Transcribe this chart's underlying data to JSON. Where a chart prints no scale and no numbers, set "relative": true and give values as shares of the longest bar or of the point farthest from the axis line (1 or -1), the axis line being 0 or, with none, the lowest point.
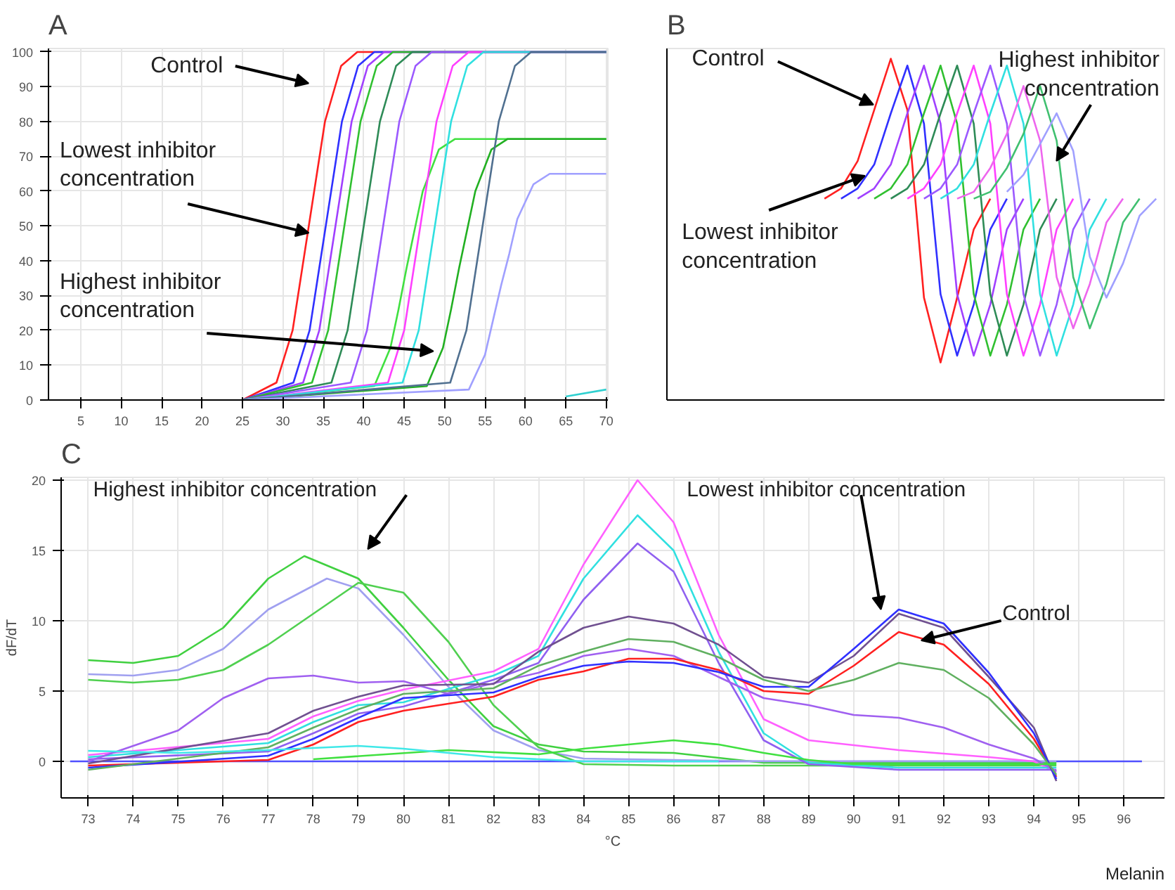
{
  "chart_data": [
    {
      "type": "line",
      "title": "A",
      "xlim": [
        1,
        70.2
      ],
      "ylim": [
        0,
        101
      ],
      "xticks": [
        5,
        10,
        15,
        20,
        25,
        30,
        35,
        40,
        45,
        50,
        55,
        60,
        65,
        70
      ],
      "yticks": [
        0,
        10,
        20,
        30,
        40,
        50,
        60,
        70,
        80,
        90,
        100
      ],
      "grid": true,
      "series": [
        {
          "color": "#ff2020",
          "x": [
            25,
            29.2,
            31.2,
            32.2,
            33.2,
            34.2,
            35.2,
            37.2,
            39.2,
            70
          ],
          "values": [
            0,
            5,
            20,
            35,
            50,
            65,
            80,
            96,
            100,
            100
          ]
        },
        {
          "color": "#3030ff",
          "x": [
            25,
            31.3,
            33.3,
            34.3,
            35.3,
            36.3,
            37.3,
            39.3,
            41.3,
            70
          ],
          "values": [
            0,
            5,
            20,
            35,
            50,
            65,
            80,
            96,
            100,
            100
          ]
        },
        {
          "color": "#a040ff",
          "x": [
            25,
            32.5,
            34.5,
            35.5,
            36.5,
            37.5,
            38.5,
            40.5,
            42.5,
            70
          ],
          "values": [
            0,
            5,
            20,
            35,
            50,
            65,
            80,
            96,
            100,
            100
          ]
        },
        {
          "color": "#30c030",
          "x": [
            25,
            33.6,
            35.6,
            36.6,
            37.6,
            38.6,
            39.6,
            41.6,
            43.6,
            70
          ],
          "values": [
            0,
            5,
            20,
            35,
            50,
            65,
            80,
            96,
            100,
            100
          ]
        },
        {
          "color": "#2e8b57",
          "x": [
            25,
            36,
            38,
            39,
            40,
            41,
            42,
            44,
            46,
            70
          ],
          "values": [
            0,
            5,
            20,
            35,
            50,
            65,
            80,
            96,
            100,
            100
          ]
        },
        {
          "color": "#9b59ff",
          "x": [
            25,
            38.4,
            40.4,
            41.4,
            42.4,
            43.4,
            44.4,
            46.4,
            48.4,
            70
          ],
          "values": [
            0,
            5,
            20,
            35,
            50,
            65,
            80,
            96,
            100,
            100
          ]
        },
        {
          "color": "#40e040",
          "x": [
            25,
            41.3,
            43.3,
            44.3,
            45.3,
            46.3,
            47.3,
            49.3,
            51.3,
            70
          ],
          "values": [
            0,
            4,
            15,
            26,
            38,
            49,
            60,
            72,
            75,
            75
          ]
        },
        {
          "color": "#ff40ff",
          "x": [
            25,
            43,
            45,
            46,
            47,
            48,
            49,
            51,
            53,
            70
          ],
          "values": [
            0,
            5,
            20,
            35,
            50,
            65,
            80,
            96,
            100,
            100
          ]
        },
        {
          "color": "#30e0e0",
          "x": [
            25,
            44.8,
            46.8,
            47.8,
            48.8,
            49.8,
            50.8,
            52.8,
            54.8,
            70
          ],
          "values": [
            0,
            5,
            20,
            35,
            50,
            65,
            80,
            96,
            100,
            100
          ]
        },
        {
          "color": "#22b022",
          "x": [
            25,
            47.8,
            49.8,
            50.8,
            51.8,
            52.8,
            53.8,
            55.8,
            57.8,
            70
          ],
          "values": [
            0,
            4,
            15,
            26,
            38,
            49,
            60,
            72,
            75,
            75
          ]
        },
        {
          "color": "#507090",
          "x": [
            25,
            50.7,
            52.7,
            53.7,
            54.7,
            55.7,
            56.7,
            58.7,
            60.7,
            70
          ],
          "values": [
            0,
            5,
            20,
            35,
            50,
            65,
            80,
            96,
            100,
            100
          ]
        },
        {
          "color": "#a0a0ff",
          "x": [
            25,
            53,
            55,
            56,
            57,
            58,
            59,
            61,
            63,
            70
          ],
          "values": [
            0,
            3,
            13,
            23,
            33,
            42,
            52,
            62,
            65,
            65
          ]
        },
        {
          "color": "#30d0d0",
          "x": [
            65,
            70
          ],
          "values": [
            1,
            3
          ]
        }
      ],
      "annotations": [
        "Control",
        {
          "text": "Lowest inhibitor concentration",
          "x": 33.2,
          "y": 48
        },
        "Highest inhibitor concentration"
      ]
    },
    {
      "type": "line",
      "title": "B",
      "relative": true,
      "grid": false,
      "categories": [
        null,
        null,
        null,
        null,
        null,
        null,
        null,
        null,
        null,
        null,
        null,
        null,
        null,
        null,
        null,
        null,
        null,
        null,
        null,
        null,
        null,
        null,
        null,
        null,
        null,
        null,
        null,
        null,
        null,
        null
      ],
      "series": [
        {
          "color": "#ff2020",
          "values": [
            null,
            null,
            null,
            null,
            null,
            null,
            null,
            null,
            null,
            0.59,
            0.62,
            0.7,
            0.85,
            1.0,
            0.85,
            0.3,
            0.11,
            0.3,
            0.5,
            0.59,
            null,
            null,
            null,
            null,
            null,
            null,
            null,
            null,
            null,
            null
          ]
        },
        {
          "color": "#3030ff",
          "values": [
            null,
            null,
            null,
            null,
            null,
            null,
            null,
            null,
            null,
            null,
            0.59,
            0.62,
            0.69,
            0.84,
            0.98,
            0.81,
            0.31,
            0.13,
            0.28,
            0.5,
            0.59,
            null,
            null,
            null,
            null,
            null,
            null,
            null,
            null,
            null
          ]
        },
        {
          "color": "#a040ff",
          "values": [
            null,
            null,
            null,
            null,
            null,
            null,
            null,
            null,
            null,
            null,
            null,
            0.59,
            0.62,
            0.69,
            0.84,
            0.98,
            0.81,
            0.31,
            0.13,
            0.28,
            0.5,
            0.59,
            null,
            null,
            null,
            null,
            null,
            null,
            null,
            null
          ]
        },
        {
          "color": "#30c030",
          "values": [
            null,
            null,
            null,
            null,
            null,
            null,
            null,
            null,
            null,
            null,
            null,
            null,
            0.59,
            0.62,
            0.69,
            0.84,
            0.98,
            0.81,
            0.31,
            0.13,
            0.28,
            0.5,
            0.59,
            null,
            null,
            null,
            null,
            null,
            null,
            null
          ]
        },
        {
          "color": "#2e8b57",
          "values": [
            null,
            null,
            null,
            null,
            null,
            null,
            null,
            null,
            null,
            null,
            null,
            null,
            null,
            0.59,
            0.62,
            0.69,
            0.84,
            0.98,
            0.81,
            0.31,
            0.13,
            0.28,
            0.5,
            0.59,
            null,
            null,
            null,
            null,
            null,
            null
          ]
        },
        {
          "color": "#ff40ff",
          "values": [
            null,
            null,
            null,
            null,
            null,
            null,
            null,
            null,
            null,
            null,
            null,
            null,
            null,
            null,
            0.59,
            0.62,
            0.69,
            0.84,
            0.98,
            0.81,
            0.31,
            0.13,
            0.28,
            0.5,
            0.59,
            null,
            null,
            null,
            null,
            null
          ]
        },
        {
          "color": "#9b59ff",
          "values": [
            null,
            null,
            null,
            null,
            null,
            null,
            null,
            null,
            null,
            null,
            null,
            null,
            null,
            null,
            null,
            0.59,
            0.62,
            0.69,
            0.84,
            0.98,
            0.81,
            0.31,
            0.13,
            0.28,
            0.5,
            0.59,
            null,
            null,
            null,
            null
          ]
        },
        {
          "color": "#30e0e0",
          "values": [
            null,
            null,
            null,
            null,
            null,
            null,
            null,
            null,
            null,
            null,
            null,
            null,
            null,
            null,
            null,
            null,
            0.59,
            0.62,
            0.69,
            0.84,
            0.98,
            0.81,
            0.31,
            0.13,
            0.28,
            0.5,
            0.59,
            null,
            null,
            null
          ]
        },
        {
          "color": "#ee66ee",
          "values": [
            null,
            null,
            null,
            null,
            null,
            null,
            null,
            null,
            null,
            null,
            null,
            null,
            null,
            null,
            null,
            null,
            null,
            0.59,
            0.61,
            0.68,
            0.78,
            0.92,
            0.76,
            0.36,
            0.21,
            0.34,
            0.52,
            0.59,
            null,
            null
          ]
        },
        {
          "color": "#40c070",
          "values": [
            null,
            null,
            null,
            null,
            null,
            null,
            null,
            null,
            null,
            null,
            null,
            null,
            null,
            null,
            null,
            null,
            null,
            null,
            0.59,
            0.61,
            0.68,
            0.78,
            0.92,
            0.76,
            0.36,
            0.21,
            0.34,
            0.52,
            0.59,
            null
          ]
        },
        {
          "color": "#a0a0ff",
          "values": [
            null,
            null,
            null,
            null,
            null,
            null,
            null,
            null,
            null,
            null,
            null,
            null,
            null,
            null,
            null,
            null,
            null,
            null,
            null,
            null,
            0.61,
            0.66,
            0.75,
            0.84,
            0.73,
            0.42,
            0.3,
            0.4,
            0.54,
            0.59
          ]
        }
      ],
      "annotations": [
        "Control",
        "Lowest inhibitor concentration",
        "Highest inhibitor concentration"
      ]
    },
    {
      "type": "line",
      "title": "C",
      "xlabel": "°C",
      "ylabel": "dF/dT",
      "xlim": [
        72.4,
        96.9
      ],
      "ylim": [
        -2.6,
        20.2
      ],
      "xticks": [
        73,
        74,
        75,
        76,
        77,
        78,
        79,
        80,
        81,
        82,
        83,
        84,
        85,
        86,
        87,
        88,
        89,
        90,
        91,
        92,
        93,
        94,
        95,
        96
      ],
      "yticks": [
        0,
        5,
        10,
        15,
        20
      ],
      "grid": true,
      "series": [
        {
          "color": "#5050ff",
          "x": [
            72.6,
            96.4
          ],
          "values": [
            0,
            0
          ]
        },
        {
          "color": "#40d040",
          "x": [
            73,
            74,
            75,
            76,
            77,
            77.8,
            79,
            80,
            81,
            82,
            83,
            84,
            86,
            88,
            94.5
          ],
          "values": [
            7.2,
            7.0,
            7.5,
            9.5,
            13,
            14.6,
            13,
            9.5,
            5.8,
            2.5,
            1.2,
            0.7,
            0.6,
            -0.1,
            -0.1
          ]
        },
        {
          "color": "#a0a0f0",
          "x": [
            73,
            74,
            75,
            76,
            77,
            78.3,
            79,
            80,
            81,
            82,
            83,
            84,
            86,
            88,
            94.5
          ],
          "values": [
            6.2,
            6.1,
            6.5,
            8,
            10.8,
            13,
            12.3,
            9,
            5.3,
            2.2,
            0.8,
            0.2,
            0.1,
            0,
            0
          ]
        },
        {
          "color": "#50d050",
          "x": [
            73,
            74,
            75,
            76,
            77,
            78,
            79,
            80,
            81,
            82,
            83,
            84,
            86,
            88,
            94.5
          ],
          "values": [
            5.8,
            5.6,
            5.8,
            6.5,
            8.3,
            10.5,
            12.7,
            12,
            8.5,
            4,
            1,
            -0.2,
            -0.3,
            -0.3,
            -0.3
          ]
        },
        {
          "color": "#ff60ff",
          "x": [
            73,
            77,
            78,
            79,
            80,
            82,
            83,
            84,
            85.2,
            86,
            87,
            88,
            89,
            91,
            93,
            94,
            94.5
          ],
          "values": [
            0.45,
            1.6,
            3.2,
            4.3,
            5.1,
            6.4,
            8,
            14,
            20,
            17,
            9,
            3,
            1.5,
            0.8,
            0.3,
            0,
            -0.8
          ]
        },
        {
          "color": "#30e0e0",
          "x": [
            73,
            77,
            78,
            79,
            80,
            82,
            83,
            84,
            85.2,
            86,
            87,
            88,
            89,
            91,
            93,
            94,
            94.5
          ],
          "values": [
            0.3,
            1.3,
            2.8,
            4.0,
            4.2,
            6.1,
            7.5,
            13,
            17.5,
            15,
            7.8,
            2,
            -0.1,
            -0.45,
            -0.45,
            -0.45,
            -0.45
          ]
        },
        {
          "color": "#9060f0",
          "x": [
            73,
            77,
            78,
            79,
            80,
            82,
            83,
            84,
            85.2,
            86,
            87,
            88,
            89,
            91,
            93,
            94,
            94.5
          ],
          "values": [
            0.15,
            0.7,
            2.0,
            3.4,
            3.9,
            5.8,
            7,
            11.5,
            15.5,
            13.5,
            7,
            1.5,
            -0.2,
            -0.6,
            -0.6,
            -0.6,
            -0.6
          ]
        },
        {
          "color": "#a060f0",
          "x": [
            73,
            75,
            76,
            77,
            78,
            79,
            80,
            81,
            83,
            84,
            85,
            86,
            87,
            88,
            89,
            90,
            91,
            92,
            93,
            94,
            94.5
          ],
          "values": [
            0,
            2.2,
            4.5,
            5.9,
            6.1,
            5.6,
            5.7,
            4.8,
            6.3,
            7.5,
            8,
            7.5,
            6.0,
            4.5,
            4,
            3.3,
            3.1,
            2.4,
            1.2,
            0.2,
            -0.7
          ]
        },
        {
          "color": "#705090",
          "x": [
            73,
            77,
            78,
            79,
            80,
            82,
            83,
            84,
            85,
            86,
            87,
            88,
            89,
            90,
            91,
            92,
            93,
            94,
            94.5
          ],
          "values": [
            -0.15,
            2.0,
            3.6,
            4.6,
            5.4,
            5.5,
            7.8,
            9.5,
            10.3,
            9.8,
            8.3,
            6,
            5.6,
            7.5,
            10.5,
            9.5,
            6,
            2.4,
            -1.4
          ]
        },
        {
          "color": "#ff2020",
          "x": [
            73,
            77,
            78,
            79,
            80,
            82,
            83,
            84,
            85,
            86,
            87,
            88,
            89,
            90,
            91,
            92,
            93,
            94,
            94.5
          ],
          "values": [
            -0.3,
            0.1,
            1.2,
            2.8,
            3.6,
            4.6,
            5.8,
            6.4,
            7.3,
            7.3,
            6.5,
            5,
            4.8,
            6.8,
            9.2,
            8.3,
            5.5,
            1.6,
            -1.1
          ]
        },
        {
          "color": "#3030ff",
          "x": [
            73,
            77,
            78,
            79,
            80,
            82,
            83,
            84,
            85,
            86,
            87,
            88,
            89,
            90,
            91,
            92,
            93,
            94,
            94.5
          ],
          "values": [
            -0.45,
            0.4,
            1.6,
            3.1,
            4.5,
            4.9,
            6,
            6.8,
            7.1,
            7,
            6.35,
            5.3,
            5.3,
            8,
            10.8,
            9.8,
            6.3,
            2.0,
            -1.25
          ]
        },
        {
          "color": "#60b060",
          "x": [
            73,
            77,
            78,
            79,
            80,
            82,
            83,
            84,
            85,
            86,
            87,
            88,
            89,
            90,
            91,
            92,
            93,
            94,
            94.5
          ],
          "values": [
            -0.6,
            1.0,
            2.4,
            3.7,
            4.8,
            5.2,
            6.8,
            7.8,
            8.7,
            8.5,
            7.4,
            5.8,
            5,
            5.8,
            7,
            6.5,
            4.5,
            1.2,
            -0.95
          ]
        },
        {
          "color": "#40e040",
          "x": [
            78,
            81,
            83,
            84,
            85,
            86,
            87,
            88,
            89,
            90,
            94.5
          ],
          "values": [
            0.15,
            0.8,
            0.5,
            0.9,
            1.2,
            1.5,
            1.2,
            0.6,
            0.1,
            -0.2,
            -0.2
          ]
        },
        {
          "color": "#40e8e8",
          "x": [
            73,
            75,
            77,
            79,
            80,
            81,
            82,
            84,
            87
          ],
          "values": [
            0.75,
            0.6,
            0.8,
            1.1,
            0.9,
            0.6,
            0.3,
            0,
            0
          ]
        }
      ],
      "annotations": [
        "Highest inhibitor concentration",
        "Lowest inhibitor concentration",
        {
          "text": "Control",
          "x": 91.5,
          "y": 8.6
        },
        "Melanin"
      ]
    }
  ]
}
